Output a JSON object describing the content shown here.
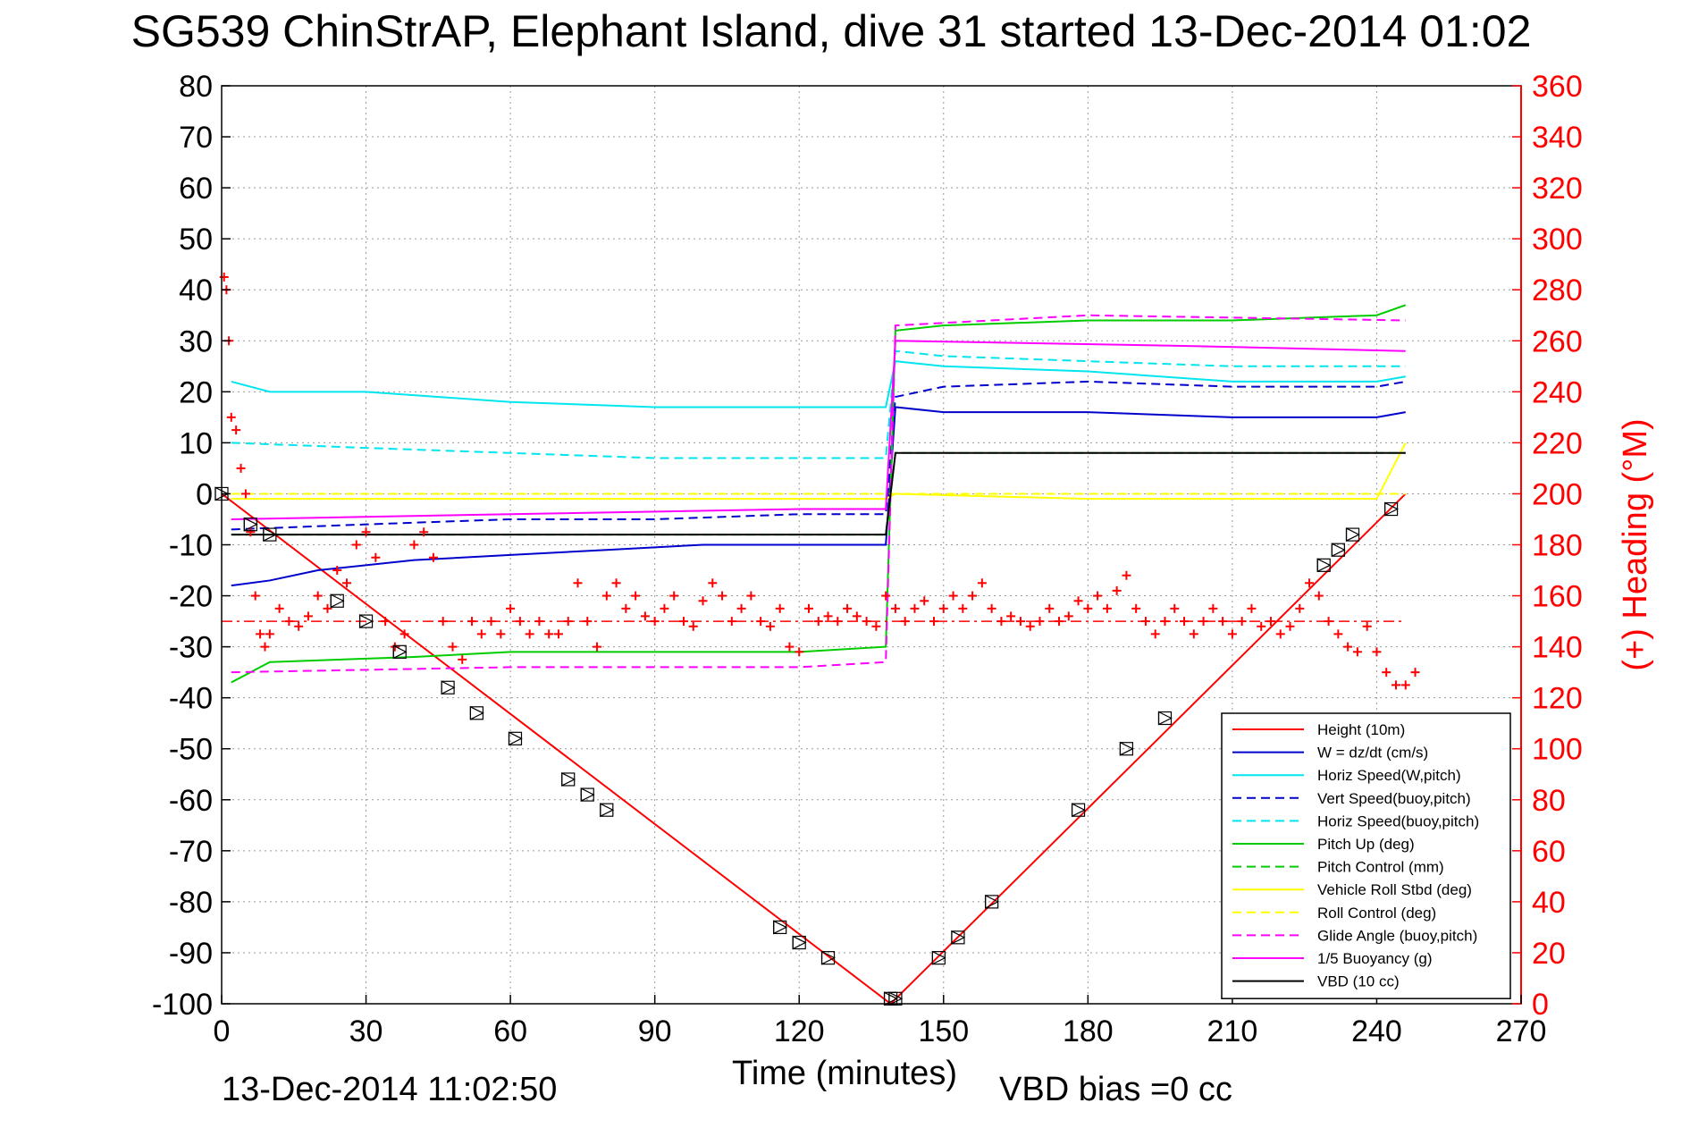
{
  "chart_data": {
    "type": "line",
    "title": "SG539 ChinStrAP, Elephant Island, dive 31 started 13-Dec-2014 01:02",
    "xlabel": "Time (minutes)",
    "ylabel": "",
    "y2label": "(+) Heading (°M)",
    "xlim": [
      0,
      270
    ],
    "ylim": [
      -100,
      80
    ],
    "y2lim": [
      0,
      360
    ],
    "xticks": [
      0,
      30,
      60,
      90,
      120,
      150,
      180,
      210,
      240,
      270
    ],
    "yticks": [
      80,
      70,
      60,
      50,
      40,
      30,
      20,
      10,
      0,
      -10,
      -20,
      -30,
      -40,
      -50,
      -60,
      -70,
      -80,
      -90,
      -100
    ],
    "y2ticks": [
      360,
      340,
      320,
      300,
      280,
      260,
      240,
      220,
      200,
      180,
      160,
      140,
      120,
      100,
      80,
      60,
      40,
      20,
      0
    ],
    "grid": true,
    "legend_position": "bottom-right",
    "footer_left": "13-Dec-2014 11:02:50",
    "footer_right": "VBD bias =0 cc",
    "series": [
      {
        "name": "Height (10m)",
        "color": "#ff0000",
        "style": "solid",
        "x": [
          0,
          139,
          246
        ],
        "y": [
          0,
          -100,
          0
        ]
      },
      {
        "name": "W = dz/dt (cm/s)",
        "color": "#0000cc",
        "style": "solid",
        "x": [
          2,
          10,
          20,
          40,
          60,
          80,
          100,
          120,
          138,
          140,
          150,
          180,
          210,
          240,
          246
        ],
        "y": [
          -18,
          -17,
          -15,
          -13,
          -12,
          -11,
          -10,
          -10,
          -10,
          17,
          16,
          16,
          15,
          15,
          16
        ]
      },
      {
        "name": "Horiz Speed(W,pitch)",
        "color": "#00e5ee",
        "style": "solid",
        "x": [
          2,
          10,
          30,
          60,
          90,
          120,
          138,
          140,
          150,
          180,
          210,
          240,
          246
        ],
        "y": [
          22,
          20,
          20,
          18,
          17,
          17,
          17,
          26,
          25,
          24,
          22,
          22,
          23
        ]
      },
      {
        "name": "Vert Speed(buoy,pitch)",
        "color": "#0000cc",
        "style": "dashed",
        "x": [
          2,
          30,
          60,
          90,
          120,
          138,
          140,
          150,
          180,
          210,
          240,
          246
        ],
        "y": [
          -7,
          -6,
          -5,
          -5,
          -4,
          -4,
          19,
          21,
          22,
          21,
          21,
          22
        ]
      },
      {
        "name": "Horiz Speed(buoy,pitch)",
        "color": "#00e5ee",
        "style": "dashed",
        "x": [
          2,
          30,
          60,
          90,
          120,
          138,
          140,
          150,
          180,
          210,
          240,
          246
        ],
        "y": [
          10,
          9,
          8,
          7,
          7,
          7,
          28,
          27,
          26,
          25,
          25,
          25
        ]
      },
      {
        "name": "Pitch Up (deg)",
        "color": "#00cc00",
        "style": "solid",
        "x": [
          2,
          10,
          40,
          60,
          90,
          120,
          138,
          140,
          150,
          180,
          210,
          240,
          246
        ],
        "y": [
          -37,
          -33,
          -32,
          -31,
          -31,
          -31,
          -30,
          32,
          33,
          34,
          34,
          35,
          37
        ]
      },
      {
        "name": "Pitch Control (mm)",
        "color": "#00cc00",
        "style": "dashed",
        "x": [
          2,
          138,
          140,
          246
        ],
        "y": [
          -8,
          -8,
          8,
          8
        ]
      },
      {
        "name": "Vehicle Roll Stbd (deg)",
        "color": "#ffff00",
        "style": "solid",
        "x": [
          2,
          60,
          120,
          138,
          140,
          180,
          240,
          246
        ],
        "y": [
          -1,
          -1,
          -1,
          -1,
          0,
          -1,
          -1,
          10
        ]
      },
      {
        "name": "Roll Control (deg)",
        "color": "#ffff00",
        "style": "dashed",
        "x": [
          2,
          138,
          140,
          246
        ],
        "y": [
          0,
          0,
          0,
          0
        ]
      },
      {
        "name": "Glide Angle (buoy,pitch)",
        "color": "#ff00ff",
        "style": "dashed",
        "x": [
          2,
          60,
          120,
          138,
          140,
          180,
          246
        ],
        "y": [
          -35,
          -34,
          -34,
          -33,
          33,
          35,
          34
        ]
      },
      {
        "name": "1/5 Buoyancy (g)",
        "color": "#ff00ff",
        "style": "solid",
        "x": [
          2,
          60,
          120,
          138,
          140,
          200,
          246
        ],
        "y": [
          -5,
          -4,
          -3,
          -3,
          30,
          29,
          28
        ]
      },
      {
        "name": "VBD (10 cc)",
        "color": "#000000",
        "style": "solid",
        "x": [
          2,
          138,
          140,
          246
        ],
        "y": [
          -8,
          -8,
          8,
          8
        ]
      }
    ],
    "heading_series": {
      "name": "Heading",
      "color": "#ff0000",
      "marker": "+",
      "axis": "right",
      "x": [
        0.5,
        1,
        1.5,
        2,
        3,
        4,
        5,
        6,
        7,
        8,
        9,
        10,
        12,
        14,
        16,
        18,
        20,
        22,
        24,
        26,
        28,
        30,
        32,
        34,
        36,
        38,
        40,
        42,
        44,
        46,
        48,
        50,
        52,
        54,
        56,
        58,
        60,
        62,
        64,
        66,
        68,
        70,
        72,
        74,
        76,
        78,
        80,
        82,
        84,
        86,
        88,
        90,
        92,
        94,
        96,
        98,
        100,
        102,
        104,
        106,
        108,
        110,
        112,
        114,
        116,
        118,
        120,
        122,
        124,
        126,
        128,
        130,
        132,
        134,
        136,
        138,
        140,
        142,
        144,
        146,
        148,
        150,
        152,
        154,
        156,
        158,
        160,
        162,
        164,
        166,
        168,
        170,
        172,
        174,
        176,
        178,
        180,
        182,
        184,
        186,
        188,
        190,
        192,
        194,
        196,
        198,
        200,
        202,
        204,
        206,
        208,
        210,
        212,
        214,
        216,
        218,
        220,
        222,
        224,
        226,
        228,
        230,
        232,
        234,
        236,
        238,
        240,
        242,
        244,
        246,
        248
      ],
      "y": [
        285,
        280,
        260,
        230,
        225,
        210,
        200,
        185,
        160,
        145,
        140,
        145,
        155,
        150,
        148,
        152,
        160,
        155,
        170,
        165,
        180,
        185,
        175,
        150,
        140,
        145,
        180,
        185,
        175,
        150,
        140,
        135,
        150,
        145,
        150,
        145,
        155,
        150,
        145,
        150,
        145,
        145,
        150,
        165,
        150,
        140,
        160,
        165,
        155,
        160,
        152,
        150,
        155,
        160,
        150,
        148,
        158,
        165,
        160,
        150,
        155,
        160,
        150,
        148,
        155,
        140,
        138,
        155,
        150,
        152,
        150,
        155,
        152,
        150,
        148,
        160,
        155,
        150,
        155,
        158,
        150,
        155,
        160,
        155,
        160,
        165,
        155,
        150,
        152,
        150,
        148,
        150,
        155,
        150,
        152,
        158,
        155,
        160,
        155,
        162,
        168,
        155,
        150,
        145,
        150,
        155,
        150,
        145,
        150,
        155,
        150,
        145,
        150,
        155,
        148,
        150,
        145,
        148,
        155,
        165,
        160,
        150,
        145,
        140,
        138,
        148,
        138,
        130,
        125,
        125,
        130
      ]
    },
    "heading_reference": {
      "y2": 150,
      "color": "#ff0000",
      "style": "dash-dot"
    },
    "markers": {
      "symbol": "triangle+square",
      "x": [
        0,
        6,
        10,
        24,
        30,
        37,
        47,
        53,
        61,
        72,
        76,
        80,
        116,
        120,
        126,
        139,
        140,
        149,
        153,
        160,
        178,
        188,
        196,
        229,
        232,
        235,
        243
      ],
      "y": [
        0,
        -6,
        -8,
        -21,
        -25,
        -31,
        -38,
        -43,
        -48,
        -56,
        -59,
        -62,
        -85,
        -88,
        -91,
        -99,
        -99,
        -91,
        -87,
        -80,
        -62,
        -50,
        -44,
        -14,
        -11,
        -8,
        -3
      ]
    }
  }
}
